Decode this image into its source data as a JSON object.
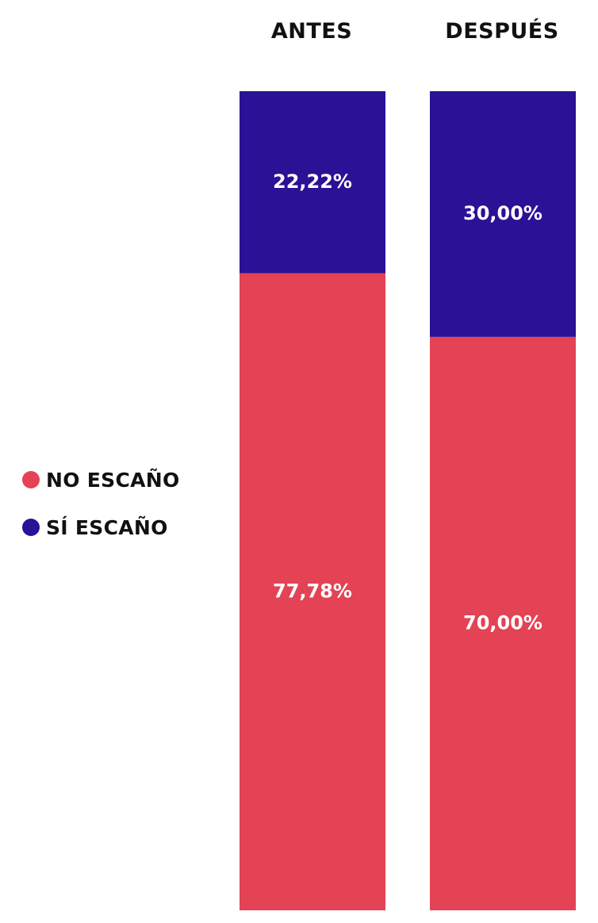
{
  "chart_data": {
    "type": "bar",
    "stacked": true,
    "normalized_percent": true,
    "categories": [
      "ANTES",
      "DESPUÉS"
    ],
    "series": [
      {
        "name": "SÍ ESCAÑO",
        "color": "#2b1196",
        "values": [
          22.22,
          30.0
        ],
        "labels": [
          "22,22%",
          "30,00%"
        ]
      },
      {
        "name": "NO ESCAÑO",
        "color": "#e34355",
        "values": [
          77.78,
          70.0
        ],
        "labels": [
          "77,78%",
          "70,00%"
        ]
      }
    ],
    "legend": {
      "placement": "left",
      "items": [
        {
          "name": "NO ESCAÑO",
          "color": "#e34355"
        },
        {
          "name": "SÍ ESCAÑO",
          "color": "#2b1196"
        }
      ]
    },
    "ylim": [
      0,
      100
    ],
    "grid": false,
    "title": "",
    "xlabel": "",
    "ylabel": ""
  }
}
